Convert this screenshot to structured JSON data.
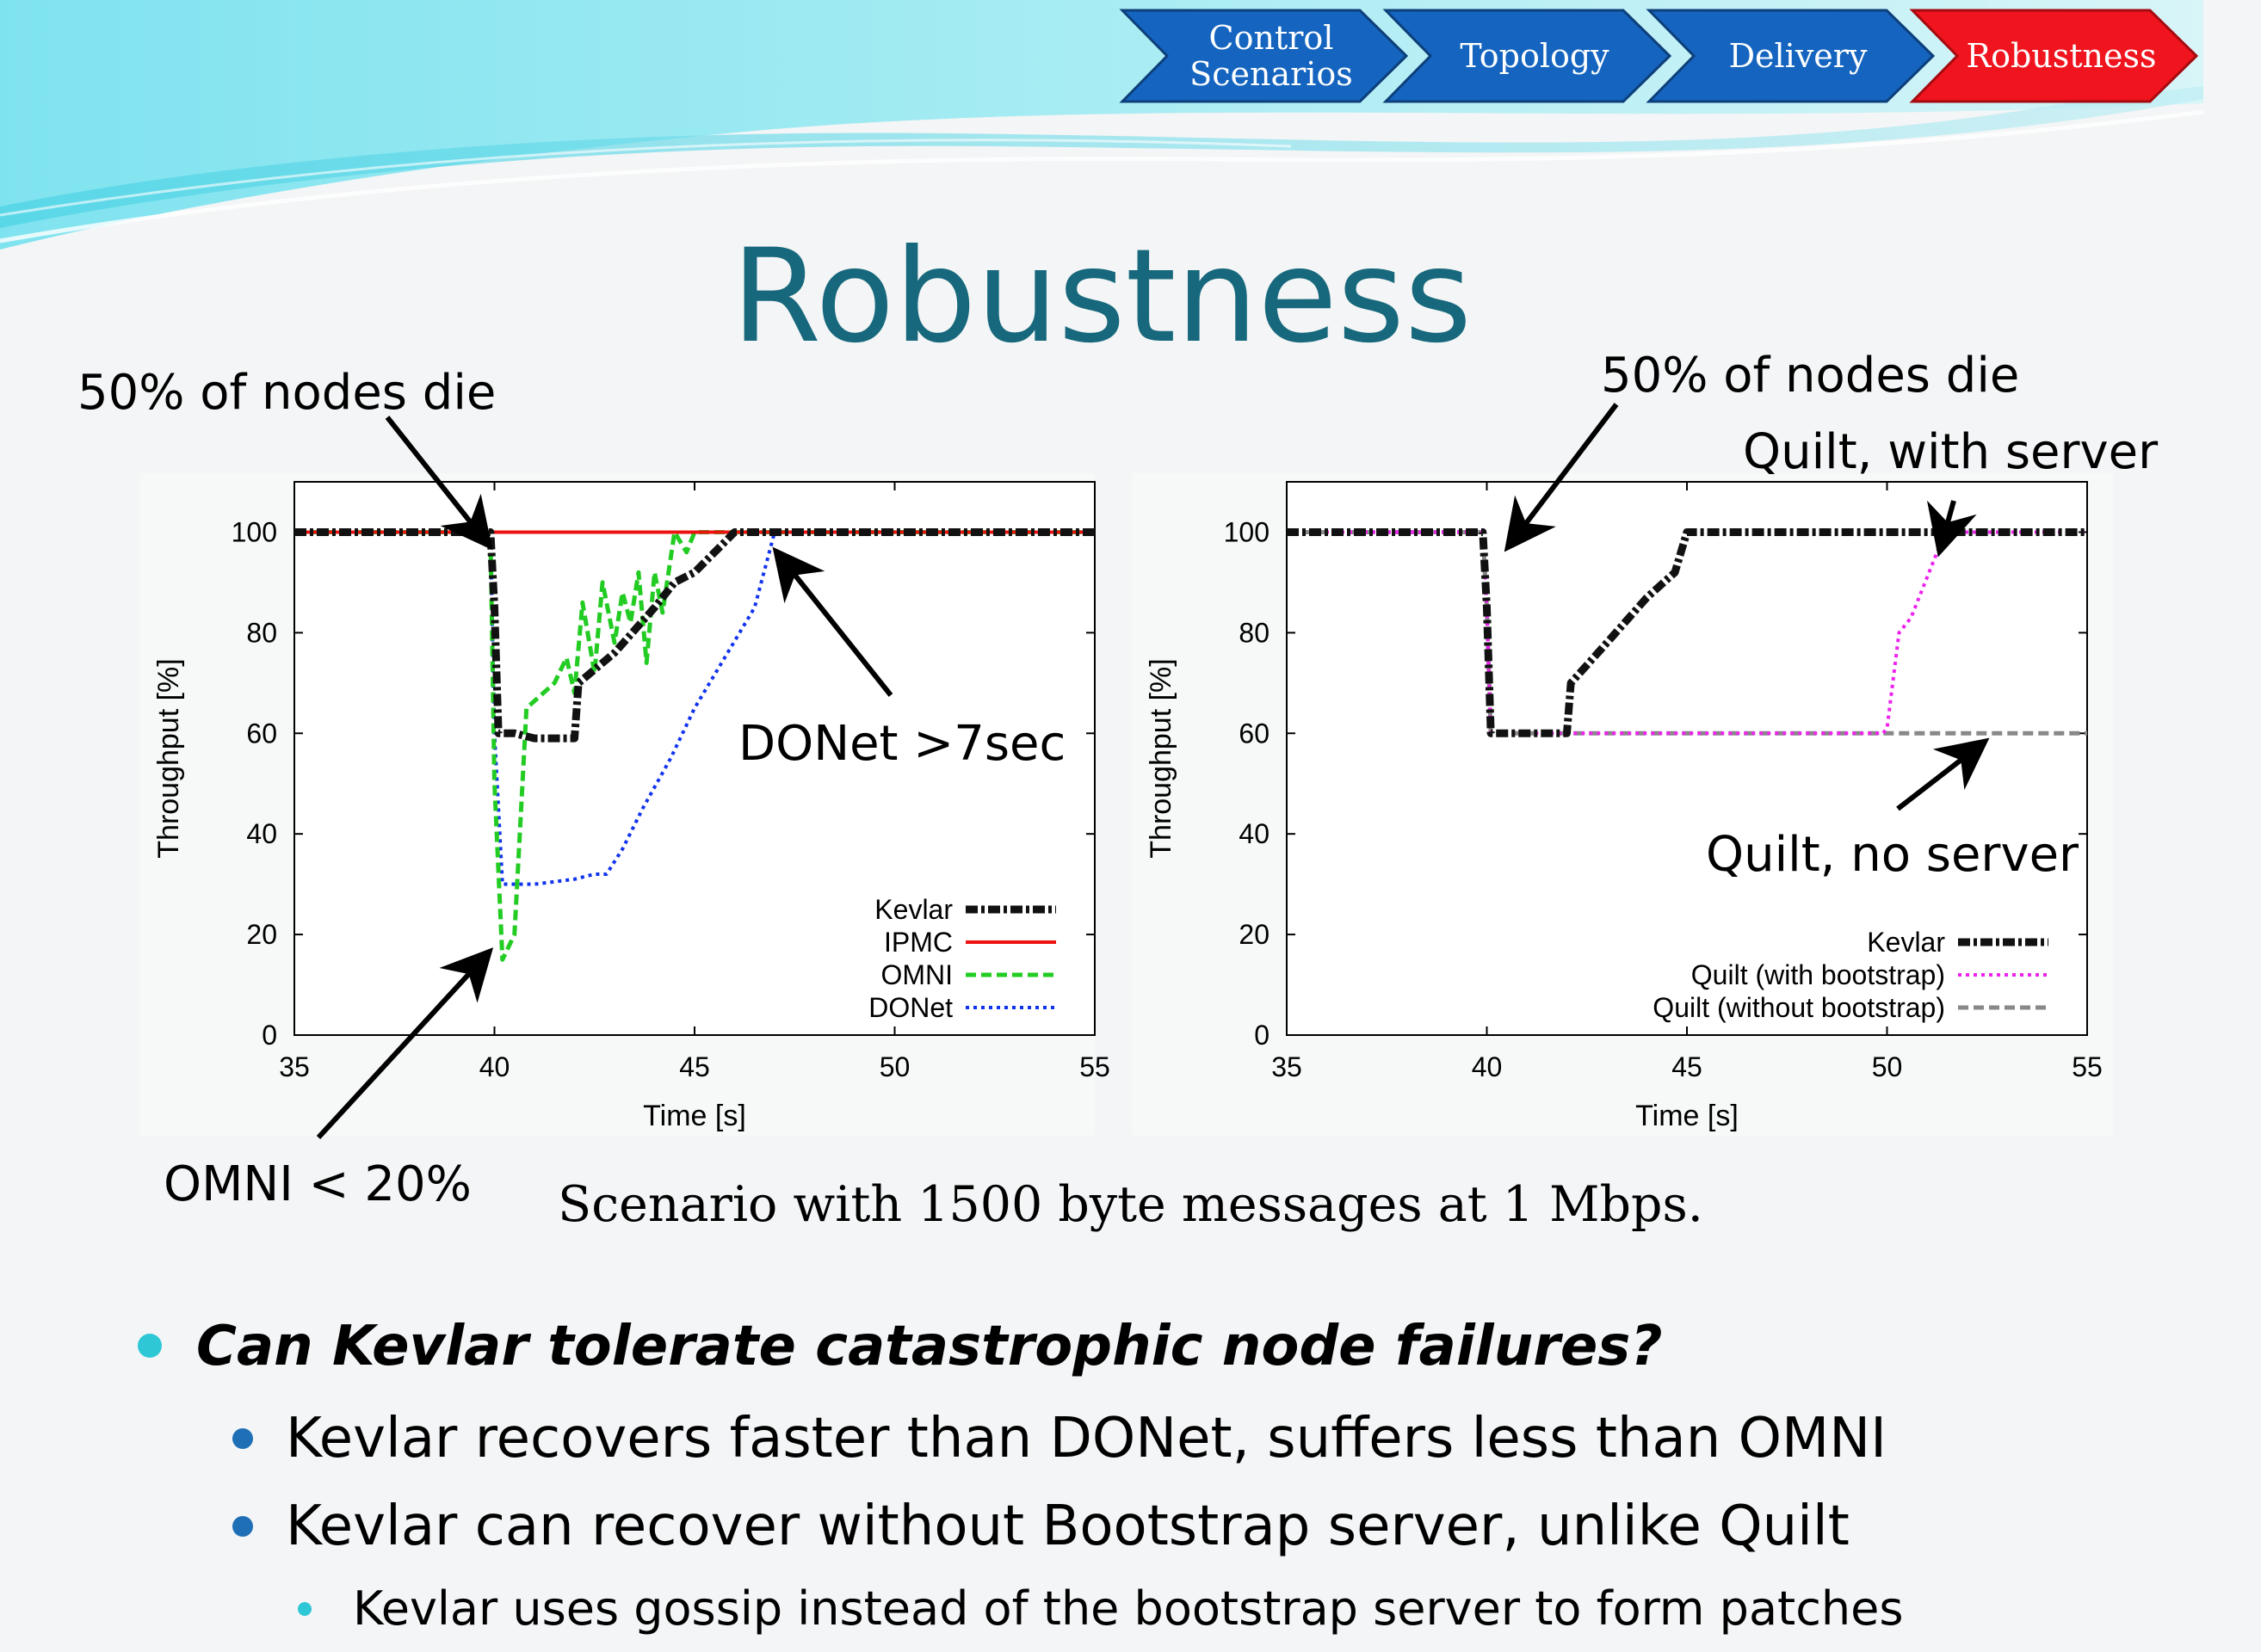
{
  "nav": {
    "steps": [
      {
        "label_line1": "Control",
        "label_line2": "Scenarios",
        "color": "#1565c0",
        "active": false
      },
      {
        "label_line1": "Topology",
        "label_line2": "",
        "color": "#1565c0",
        "active": false
      },
      {
        "label_line1": "Delivery",
        "label_line2": "",
        "color": "#1565c0",
        "active": false
      },
      {
        "label_line1": "Robustness",
        "label_line2": "",
        "color": "#f0141e",
        "active": true
      }
    ]
  },
  "title": "Robustness",
  "callouts": {
    "left_nodes_die": "50% of nodes die",
    "donet": "DONet >7sec",
    "omni": "OMNI < 20%",
    "right_nodes_die": "50% of nodes die",
    "quilt_with_server": "Quilt, with server",
    "quilt_no_server": "Quilt, no server"
  },
  "caption": "Scenario with 1500 byte messages at 1 Mbps.",
  "bullets": {
    "question": "Can Kevlar tolerate catastrophic node failures?",
    "point1": "Kevlar recovers faster than DONet, suffers less than OMNI",
    "point2": "Kevlar can recover without Bootstrap server, unlike Quilt",
    "subpoint": "Kevlar uses gossip instead of the bootstrap server to form patches"
  },
  "chart_data": [
    {
      "type": "line",
      "xlabel": "Time [s]",
      "ylabel": "Throughput [%]",
      "xlim": [
        35,
        55
      ],
      "ylim": [
        0,
        110
      ],
      "xticks": [
        35,
        40,
        45,
        50,
        55
      ],
      "yticks": [
        0,
        20,
        40,
        60,
        80,
        100
      ],
      "legend_position": "bottom-right",
      "series": [
        {
          "name": "Kevlar",
          "color": "#111111",
          "style": "dashdot-thick",
          "x": [
            35,
            39.9,
            40,
            40.1,
            40.5,
            41,
            42,
            42.1,
            43,
            44,
            44.5,
            45,
            46,
            55
          ],
          "y": [
            100,
            100,
            85,
            60,
            60,
            59,
            59,
            70,
            76,
            85,
            90,
            92,
            100,
            100
          ]
        },
        {
          "name": "IPMC",
          "color": "#ee1111",
          "style": "solid",
          "x": [
            35,
            55
          ],
          "y": [
            100,
            100
          ]
        },
        {
          "name": "OMNI",
          "color": "#22cc22",
          "style": "dashed",
          "x": [
            35,
            39.9,
            40,
            40.2,
            40.5,
            40.8,
            41.5,
            41.8,
            42,
            42.2,
            42.5,
            42.7,
            43,
            43.2,
            43.4,
            43.6,
            43.8,
            44,
            44.2,
            44.5,
            44.8,
            45,
            46,
            55
          ],
          "y": [
            100,
            100,
            50,
            15,
            20,
            65,
            70,
            75,
            68,
            86,
            72,
            90,
            78,
            88,
            82,
            92,
            74,
            92,
            84,
            100,
            96,
            100,
            100,
            100
          ]
        },
        {
          "name": "DONet",
          "color": "#1133ee",
          "style": "dotted",
          "x": [
            35,
            39.9,
            40,
            40.2,
            41,
            42,
            42.5,
            42.8,
            43.2,
            43.7,
            44.4,
            45,
            46.5,
            47,
            55
          ],
          "y": [
            100,
            100,
            60,
            30,
            30,
            31,
            32,
            32,
            37,
            45,
            55,
            65,
            85,
            100,
            100
          ]
        }
      ]
    },
    {
      "type": "line",
      "xlabel": "Time [s]",
      "ylabel": "Throughput [%]",
      "xlim": [
        35,
        55
      ],
      "ylim": [
        0,
        110
      ],
      "xticks": [
        35,
        40,
        45,
        50,
        55
      ],
      "yticks": [
        0,
        20,
        40,
        60,
        80,
        100
      ],
      "legend_position": "bottom-right",
      "series": [
        {
          "name": "Kevlar",
          "color": "#111111",
          "style": "dashdot-thick",
          "x": [
            35,
            39.9,
            40,
            40.1,
            41,
            42,
            42.1,
            43,
            44,
            44.7,
            45,
            55
          ],
          "y": [
            100,
            100,
            85,
            60,
            60,
            60,
            70,
            78,
            87,
            92,
            100,
            100
          ]
        },
        {
          "name": "Quilt (with bootstrap)",
          "color": "#ee22ee",
          "style": "dotted",
          "x": [
            35,
            39.9,
            40,
            40.1,
            49.9,
            50,
            50.3,
            50.6,
            51.3,
            51.5,
            55
          ],
          "y": [
            100,
            100,
            85,
            60,
            60,
            61,
            80,
            83,
            97,
            100,
            100
          ]
        },
        {
          "name": "Quilt (without bootstrap)",
          "color": "#888888",
          "style": "dashed",
          "x": [
            35,
            39.9,
            40,
            40.1,
            50,
            52,
            55
          ],
          "y": [
            100,
            100,
            85,
            60,
            60,
            60,
            60
          ]
        }
      ]
    }
  ]
}
